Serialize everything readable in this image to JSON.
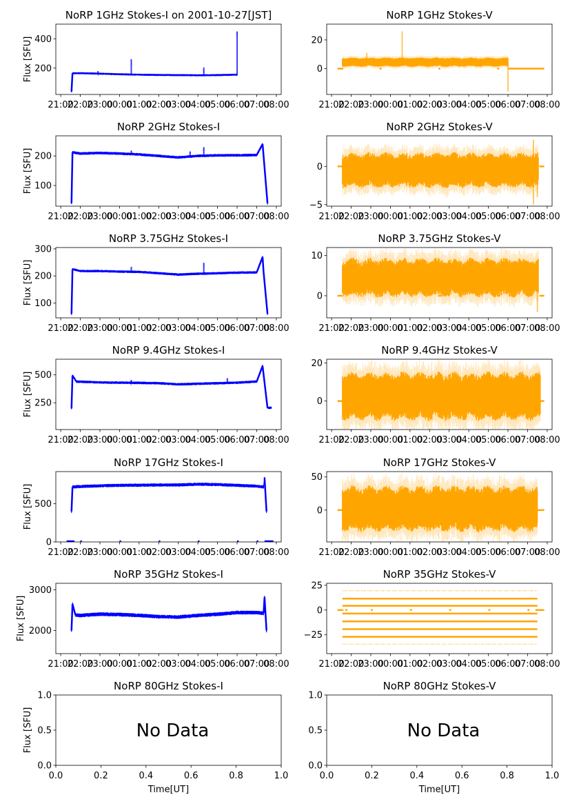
{
  "figure": {
    "date_label": "2001-10-27[JST]"
  },
  "chart_data": [
    {
      "type": "scatter",
      "title": "NoRP 1GHz Stokes-I on 2001-10-27[JST]",
      "ylabel": "Flux [SFU]",
      "xlabel": "",
      "color": "#0000ff",
      "xlim": [
        -0.25,
        11.25
      ],
      "ylim": [
        20,
        500
      ],
      "yticks": [
        200,
        400
      ],
      "xticks": [
        "21:00",
        "22:00",
        "23:00",
        "00:00",
        "01:00",
        "02:00",
        "03:00",
        "04:00",
        "05:00",
        "06:00",
        "07:00",
        "08:00"
      ],
      "series": {
        "kind": "intensity",
        "start": 0.55,
        "end": 9.0,
        "baseline": [
          [
            0.55,
            40
          ],
          [
            0.6,
            165
          ],
          [
            1.0,
            165
          ],
          [
            2.0,
            162
          ],
          [
            3.0,
            158
          ],
          [
            4.0,
            155
          ],
          [
            5.0,
            153
          ],
          [
            6.0,
            152
          ],
          [
            7.0,
            151
          ],
          [
            8.0,
            152
          ],
          [
            9.0,
            155
          ]
        ],
        "noise": 6,
        "spikes": [
          [
            3.6,
            260
          ],
          [
            7.3,
            205
          ],
          [
            9.0,
            450
          ],
          [
            1.9,
            180
          ]
        ]
      }
    },
    {
      "type": "scatter",
      "title": "NoRP 1GHz Stokes-V",
      "ylabel": "",
      "xlabel": "",
      "color": "#ffa500",
      "xlim": [
        -0.25,
        11.25
      ],
      "ylim": [
        -18,
        31
      ],
      "yticks": [
        0,
        20
      ],
      "xticks": [
        "21:00",
        "22:00",
        "23:00",
        "00:00",
        "01:00",
        "02:00",
        "03:00",
        "04:00",
        "05:00",
        "06:00",
        "07:00",
        "08:00"
      ],
      "series": {
        "kind": "polarization",
        "start": 0.55,
        "end": 9.0,
        "center": 4.5,
        "spread": 2.5,
        "zero_segments": [
          [
            0.3,
            0.6
          ],
          [
            2.45,
            2.55
          ],
          [
            5.45,
            5.55
          ],
          [
            8.45,
            8.55
          ],
          [
            9.0,
            10.85
          ]
        ],
        "spikes": [
          [
            3.6,
            26
          ],
          [
            1.8,
            11
          ],
          [
            9.0,
            -16
          ]
        ]
      }
    },
    {
      "type": "scatter",
      "title": "NoRP 2GHz Stokes-I",
      "ylabel": "Flux [SFU]",
      "xlabel": "",
      "color": "#0000ff",
      "xlim": [
        -0.25,
        11.25
      ],
      "ylim": [
        30,
        268
      ],
      "yticks": [
        100,
        200
      ],
      "xticks": [
        "21:00",
        "22:00",
        "23:00",
        "00:00",
        "01:00",
        "02:00",
        "03:00",
        "04:00",
        "05:00",
        "06:00",
        "07:00",
        "08:00"
      ],
      "series": {
        "kind": "intensity",
        "start": 0.55,
        "end": 10.55,
        "baseline": [
          [
            0.55,
            40
          ],
          [
            0.6,
            212
          ],
          [
            1.0,
            208
          ],
          [
            2.0,
            210
          ],
          [
            3.0,
            208
          ],
          [
            4.0,
            205
          ],
          [
            5.0,
            200
          ],
          [
            6.0,
            195
          ],
          [
            7.0,
            200
          ],
          [
            8.0,
            202
          ],
          [
            9.0,
            202
          ],
          [
            10.0,
            203
          ],
          [
            10.3,
            240
          ],
          [
            10.35,
            200
          ],
          [
            10.55,
            40
          ]
        ],
        "noise": 4,
        "spikes": [
          [
            3.6,
            218
          ],
          [
            7.3,
            230
          ],
          [
            6.6,
            215
          ]
        ]
      }
    },
    {
      "type": "scatter",
      "title": "NoRP 2GHz Stokes-V",
      "ylabel": "",
      "xlabel": "",
      "color": "#ffa500",
      "xlim": [
        -0.25,
        11.25
      ],
      "ylim": [
        -5.2,
        4
      ],
      "yticks": [
        -5,
        0
      ],
      "xticks": [
        "21:00",
        "22:00",
        "23:00",
        "00:00",
        "01:00",
        "02:00",
        "03:00",
        "04:00",
        "05:00",
        "06:00",
        "07:00",
        "08:00"
      ],
      "series": {
        "kind": "polarization",
        "start": 0.55,
        "end": 10.55,
        "center": -0.5,
        "spread": 1.8,
        "zero_segments": [
          [
            0.3,
            0.55
          ],
          [
            10.6,
            10.85
          ]
        ],
        "spikes": [
          [
            10.3,
            3.5
          ],
          [
            10.3,
            -5
          ],
          [
            10.5,
            -4
          ]
        ]
      }
    },
    {
      "type": "scatter",
      "title": "NoRP 3.75GHz Stokes-I",
      "ylabel": "Flux [SFU]",
      "xlabel": "",
      "color": "#0000ff",
      "xlim": [
        -0.25,
        11.25
      ],
      "ylim": [
        45,
        305
      ],
      "yticks": [
        100,
        200,
        300
      ],
      "xticks": [
        "21:00",
        "22:00",
        "23:00",
        "00:00",
        "01:00",
        "02:00",
        "03:00",
        "04:00",
        "05:00",
        "06:00",
        "07:00",
        "08:00"
      ],
      "series": {
        "kind": "intensity",
        "start": 0.55,
        "end": 10.55,
        "baseline": [
          [
            0.55,
            60
          ],
          [
            0.6,
            225
          ],
          [
            1.0,
            218
          ],
          [
            2.0,
            218
          ],
          [
            3.0,
            216
          ],
          [
            4.0,
            215
          ],
          [
            5.0,
            210
          ],
          [
            6.0,
            205
          ],
          [
            7.0,
            208
          ],
          [
            8.0,
            210
          ],
          [
            9.0,
            212
          ],
          [
            10.0,
            213
          ],
          [
            10.3,
            270
          ],
          [
            10.35,
            215
          ],
          [
            10.55,
            60
          ]
        ],
        "noise": 4,
        "spikes": [
          [
            3.6,
            233
          ],
          [
            7.3,
            248
          ]
        ]
      }
    },
    {
      "type": "scatter",
      "title": "NoRP 3.75GHz Stokes-V",
      "ylabel": "",
      "xlabel": "",
      "color": "#ffa500",
      "xlim": [
        -0.25,
        11.25
      ],
      "ylim": [
        -5.5,
        12
      ],
      "yticks": [
        0,
        10
      ],
      "xticks": [
        "21:00",
        "22:00",
        "23:00",
        "00:00",
        "01:00",
        "02:00",
        "03:00",
        "04:00",
        "05:00",
        "06:00",
        "07:00",
        "08:00"
      ],
      "series": {
        "kind": "polarization",
        "start": 0.55,
        "end": 10.55,
        "center": 4.5,
        "spread": 3.8,
        "zero_segments": [
          [
            0.3,
            0.55
          ],
          [
            2.45,
            2.6
          ],
          [
            5.45,
            5.6
          ],
          [
            8.45,
            8.6
          ],
          [
            10.6,
            10.85
          ]
        ],
        "spikes": [
          [
            10.5,
            -4
          ],
          [
            5.3,
            9.5
          ]
        ]
      }
    },
    {
      "type": "scatter",
      "title": "NoRP 9.4GHz Stokes-I",
      "ylabel": "Flux [SFU]",
      "xlabel": "",
      "color": "#0000ff",
      "xlim": [
        -0.25,
        11.25
      ],
      "ylim": [
        10,
        640
      ],
      "yticks": [
        250,
        500
      ],
      "xticks": [
        "21:00",
        "22:00",
        "23:00",
        "00:00",
        "01:00",
        "02:00",
        "03:00",
        "04:00",
        "05:00",
        "06:00",
        "07:00",
        "08:00"
      ],
      "series": {
        "kind": "intensity",
        "start": 0.55,
        "end": 10.75,
        "baseline": [
          [
            0.55,
            200
          ],
          [
            0.6,
            495
          ],
          [
            0.8,
            440
          ],
          [
            2.0,
            432
          ],
          [
            3.0,
            430
          ],
          [
            4.0,
            428
          ],
          [
            5.0,
            425
          ],
          [
            6.0,
            415
          ],
          [
            7.0,
            420
          ],
          [
            8.0,
            425
          ],
          [
            9.0,
            430
          ],
          [
            10.0,
            440
          ],
          [
            10.3,
            580
          ],
          [
            10.4,
            430
          ],
          [
            10.55,
            205
          ],
          [
            10.75,
            205
          ]
        ],
        "noise": 10,
        "spikes": [
          [
            8.5,
            470
          ],
          [
            3.6,
            455
          ]
        ]
      }
    },
    {
      "type": "scatter",
      "title": "NoRP 9.4GHz Stokes-V",
      "ylabel": "",
      "xlabel": "",
      "color": "#ffa500",
      "xlim": [
        -0.25,
        11.25
      ],
      "ylim": [
        -15,
        22
      ],
      "yticks": [
        0,
        20
      ],
      "xticks": [
        "21:00",
        "22:00",
        "23:00",
        "00:00",
        "01:00",
        "02:00",
        "03:00",
        "04:00",
        "05:00",
        "06:00",
        "07:00",
        "08:00"
      ],
      "series": {
        "kind": "polarization",
        "start": 0.55,
        "end": 10.65,
        "center": 2.5,
        "spread": 10,
        "zero_segments": [
          [
            0.3,
            0.55
          ],
          [
            10.65,
            10.85
          ]
        ],
        "spikes": []
      }
    },
    {
      "type": "scatter",
      "title": "NoRP 17GHz Stokes-I",
      "ylabel": "Flux [SFU]",
      "xlabel": "",
      "color": "#0000ff",
      "xlim": [
        -0.25,
        11.25
      ],
      "ylim": [
        0,
        920
      ],
      "yticks": [
        0,
        500
      ],
      "xticks": [
        "21:00",
        "22:00",
        "23:00",
        "00:00",
        "01:00",
        "02:00",
        "03:00",
        "04:00",
        "05:00",
        "06:00",
        "07:00",
        "08:00"
      ],
      "series": {
        "kind": "intensity",
        "start": 0.55,
        "end": 10.5,
        "baseline": [
          [
            0.55,
            400
          ],
          [
            0.6,
            720
          ],
          [
            1.0,
            725
          ],
          [
            2.0,
            735
          ],
          [
            3.0,
            740
          ],
          [
            4.0,
            742
          ],
          [
            5.0,
            745
          ],
          [
            6.0,
            745
          ],
          [
            7.0,
            755
          ],
          [
            8.0,
            750
          ],
          [
            9.0,
            740
          ],
          [
            10.0,
            730
          ],
          [
            10.35,
            720
          ],
          [
            10.4,
            840
          ],
          [
            10.5,
            400
          ]
        ],
        "noise": 18,
        "spikes": [],
        "zero_marks": [
          [
            0.3,
            0.7
          ],
          [
            1.0
          ],
          [
            3.0
          ],
          [
            5.0
          ],
          [
            7.0
          ],
          [
            9.0
          ],
          [
            10.0
          ],
          [
            10.4,
            10.85
          ]
        ]
      }
    },
    {
      "type": "scatter",
      "title": "NoRP 17GHz Stokes-V",
      "ylabel": "",
      "xlabel": "",
      "color": "#ffa500",
      "xlim": [
        -0.25,
        11.25
      ],
      "ylim": [
        -48,
        58
      ],
      "yticks": [
        0,
        50
      ],
      "xticks": [
        "21:00",
        "22:00",
        "23:00",
        "00:00",
        "01:00",
        "02:00",
        "03:00",
        "04:00",
        "05:00",
        "06:00",
        "07:00",
        "08:00"
      ],
      "series": {
        "kind": "polarization",
        "start": 0.55,
        "end": 10.5,
        "center": 2,
        "spread": 27,
        "zero_segments": [
          [
            0.3,
            0.55
          ],
          [
            10.5,
            10.85
          ]
        ],
        "spikes": []
      }
    },
    {
      "type": "scatter",
      "title": "NoRP 35GHz Stokes-I",
      "ylabel": "Flux [SFU]",
      "xlabel": "",
      "color": "#0000ff",
      "xlim": [
        -0.25,
        11.25
      ],
      "ylim": [
        1430,
        3160
      ],
      "yticks": [
        2000,
        3000
      ],
      "xticks": [
        "21:00",
        "22:00",
        "23:00",
        "00:00",
        "01:00",
        "02:00",
        "03:00",
        "04:00",
        "05:00",
        "06:00",
        "07:00",
        "08:00"
      ],
      "series": {
        "kind": "intensity",
        "start": 0.55,
        "end": 10.5,
        "baseline": [
          [
            0.55,
            2000
          ],
          [
            0.6,
            2650
          ],
          [
            0.75,
            2380
          ],
          [
            1.0,
            2370
          ],
          [
            2.0,
            2400
          ],
          [
            3.0,
            2390
          ],
          [
            4.0,
            2370
          ],
          [
            5.0,
            2340
          ],
          [
            6.0,
            2330
          ],
          [
            7.0,
            2370
          ],
          [
            8.0,
            2400
          ],
          [
            9.0,
            2440
          ],
          [
            10.0,
            2440
          ],
          [
            10.35,
            2420
          ],
          [
            10.4,
            2820
          ],
          [
            10.5,
            2000
          ]
        ],
        "noise": 40,
        "spikes": []
      }
    },
    {
      "type": "scatter",
      "title": "NoRP 35GHz Stokes-V",
      "ylabel": "",
      "xlabel": "",
      "color": "#ffa500",
      "xlim": [
        -0.25,
        11.25
      ],
      "ylim": [
        -44,
        27
      ],
      "yticks": [
        -25,
        0,
        25
      ],
      "xticks": [
        "21:00",
        "22:00",
        "23:00",
        "00:00",
        "01:00",
        "02:00",
        "03:00",
        "04:00",
        "05:00",
        "06:00",
        "07:00",
        "08:00"
      ],
      "series": {
        "kind": "quantized",
        "start": 0.55,
        "end": 10.5,
        "levels": [
          11.5,
          4.3,
          -3.5,
          -11.5,
          -19.3,
          -27
        ],
        "sparse_levels": [
          19.5,
          -34.5
        ],
        "zero_segments": [
          [
            0.3,
            0.6
          ],
          [
            0.7,
            0.8
          ],
          [
            2.0,
            2.1
          ],
          [
            4.0,
            4.1
          ],
          [
            6.0,
            6.1
          ],
          [
            8.0,
            8.1
          ],
          [
            10.0,
            10.1
          ],
          [
            10.4,
            10.85
          ]
        ]
      }
    },
    {
      "type": "scatter",
      "title": "NoRP 80GHz Stokes-I",
      "ylabel": "Flux [SFU]",
      "xlabel": "Time[UT]",
      "color": "#0000ff",
      "xlim": [
        0,
        1
      ],
      "ylim": [
        0,
        1
      ],
      "yticks": [
        0.0,
        0.5,
        1.0
      ],
      "xticks_numeric": [
        0.0,
        0.2,
        0.4,
        0.6,
        0.8,
        1.0
      ],
      "annotation": "No Data",
      "series": null
    },
    {
      "type": "scatter",
      "title": "NoRP 80GHz Stokes-V",
      "ylabel": "",
      "xlabel": "Time[UT]",
      "color": "#ffa500",
      "xlim": [
        0,
        1
      ],
      "ylim": [
        0,
        1
      ],
      "yticks": [
        0.0,
        0.5,
        1.0
      ],
      "xticks_numeric": [
        0.0,
        0.2,
        0.4,
        0.6,
        0.8,
        1.0
      ],
      "annotation": "No Data",
      "series": null
    }
  ]
}
